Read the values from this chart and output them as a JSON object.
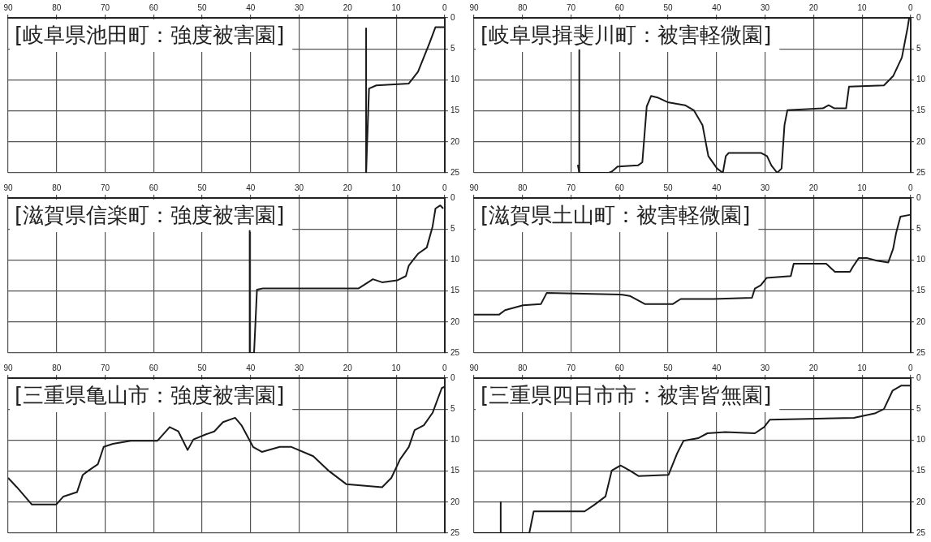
{
  "chart_data": [
    {
      "type": "line",
      "title": "[岐阜県池田町：強度被害園]",
      "series": [
        {
          "color": "#1a1a1a",
          "x": [
            16.2,
            16.2
          ],
          "values": [
            1.7,
            25
          ]
        },
        {
          "color": "#1a1a1a",
          "x": [
            16.2,
            15.6,
            14.1,
            7.4,
            5.5,
            3.1,
            1.9,
            0
          ],
          "values": [
            25,
            11.4,
            10.9,
            10.6,
            8.7,
            4.0,
            1.5,
            1.5
          ]
        }
      ],
      "xlim": [
        90,
        0
      ],
      "xticks": [
        90,
        80,
        70,
        60,
        50,
        40,
        30,
        20,
        10,
        0
      ],
      "ylim": [
        25,
        0
      ],
      "yticks": [
        0,
        5,
        10,
        15,
        20,
        25
      ],
      "grid": true,
      "marker": "none"
    },
    {
      "type": "line",
      "title": "[岐阜県揖斐川町：被害軽微園]",
      "series": [
        {
          "color": "#1a1a1a",
          "x": [
            0.3,
            0.6,
            1.8,
            3.6,
            5.5,
            12.7,
            13.3,
            15.7,
            16.9,
            18.1,
            25.4,
            26,
            26.6,
            27.5,
            28.7,
            29.6,
            30.8,
            37.5,
            38.1,
            38.7,
            39.9,
            41.7,
            42.9,
            44.7,
            46.5,
            50.1,
            52,
            53.5,
            54.4,
            55.3,
            56.2,
            60.4,
            61.6,
            62.2,
            68.3,
            68.6
          ],
          "values": [
            0,
            1.5,
            6.4,
            9.4,
            10.9,
            11.1,
            14.6,
            14.6,
            14.1,
            14.6,
            14.9,
            17.3,
            24.3,
            25,
            23.8,
            22.3,
            21.8,
            21.8,
            22.3,
            25,
            24.3,
            22.3,
            17.3,
            14.9,
            14.1,
            13.6,
            12.9,
            12.6,
            14.3,
            23.3,
            23.8,
            24,
            24.8,
            25,
            25,
            23.7
          ]
        },
        {
          "color": "#1a1a1a",
          "x": [
            68.3,
            68.3
          ],
          "values": [
            5.2,
            25
          ]
        }
      ],
      "xlim": [
        90,
        0
      ],
      "xticks": [
        90,
        80,
        70,
        60,
        50,
        40,
        30,
        20,
        10,
        0
      ],
      "ylim": [
        25,
        0
      ],
      "yticks": [
        0,
        5,
        10,
        15,
        20,
        25
      ],
      "grid": true,
      "marker": "none"
    },
    {
      "type": "line",
      "title": "[滋賀県信楽町：強度被害園]",
      "series": [
        {
          "color": "#1a1a1a",
          "x": [
            40.2,
            40.2
          ],
          "values": [
            5.3,
            25
          ]
        },
        {
          "color": "#1a1a1a",
          "x": [
            40.2,
            39.3,
            38.7,
            37.5,
            17.8,
            14.8,
            12.9,
            9.8,
            8,
            7.4,
            5.5,
            3.7,
            2.5,
            1.9,
            0.9,
            0.3
          ],
          "values": [
            25,
            25,
            14.8,
            14.6,
            14.6,
            13.1,
            13.6,
            13.3,
            12.6,
            10.9,
            9.0,
            8.0,
            4.6,
            1.7,
            1.2,
            1.7
          ]
        }
      ],
      "xlim": [
        90,
        0
      ],
      "xticks": [
        90,
        80,
        70,
        60,
        50,
        40,
        30,
        20,
        10,
        0
      ],
      "ylim": [
        25,
        0
      ],
      "yticks": [
        0,
        5,
        10,
        15,
        20,
        25
      ],
      "grid": true,
      "marker": "none"
    },
    {
      "type": "line",
      "title": "[滋賀県土山町：被害軽微園]",
      "series": [
        {
          "color": "#1a1a1a",
          "x": [
            0,
            2.1,
            3.0,
            3.6,
            4.6,
            7,
            8.9,
            10.7,
            11.9,
            12.5,
            15.6,
            17.4,
            24.1,
            24.7,
            29.7,
            30.9,
            32.1,
            32.7,
            40.7,
            47.4,
            49,
            54.8,
            57.9,
            59.4,
            75,
            76.2,
            79.9,
            83.6,
            84.8,
            90
          ],
          "values": [
            2.7,
            3.0,
            5.7,
            8.2,
            10.4,
            10.1,
            9.7,
            9.7,
            11.1,
            11.9,
            11.9,
            10.6,
            10.6,
            12.6,
            12.9,
            14.1,
            14.6,
            16.1,
            16.3,
            16.3,
            17.1,
            17.1,
            15.8,
            15.6,
            15.3,
            17.1,
            17.3,
            18.1,
            18.8,
            18.8
          ]
        }
      ],
      "xlim": [
        90,
        0
      ],
      "xticks": [
        90,
        80,
        70,
        60,
        50,
        40,
        30,
        20,
        10,
        0
      ],
      "ylim": [
        25,
        0
      ],
      "yticks": [
        0,
        5,
        10,
        15,
        20,
        25
      ],
      "grid": true,
      "marker": "none"
    },
    {
      "type": "line",
      "title": "[三重県亀山市：強度被害園]",
      "series": [
        {
          "color": "#1a1a1a",
          "x": [
            90,
            88.2,
            85.1,
            80.1,
            78.6,
            75.8,
            74.6,
            73.4,
            71.5,
            70.3,
            68.4,
            64.7,
            59.2,
            56.7,
            54.9,
            53,
            51.8,
            49.3,
            47.5,
            45.7,
            43.2,
            41.9,
            39.5,
            37.7,
            34,
            31.6,
            27.1,
            24,
            20.3,
            12.9,
            11,
            9.2,
            7.4,
            6.2,
            4.3,
            2.5,
            0.6,
            0
          ],
          "values": [
            16.1,
            17.6,
            20.4,
            20.4,
            19.1,
            18.4,
            15.6,
            14.9,
            13.9,
            11.1,
            10.6,
            10.1,
            10.1,
            7.9,
            8.6,
            11.6,
            9.9,
            9.1,
            8.6,
            7.1,
            6.4,
            7.6,
            11.1,
            11.9,
            11.1,
            11.1,
            12.6,
            14.9,
            17.1,
            17.6,
            16.1,
            13.1,
            11.1,
            8.4,
            7.6,
            5.6,
            1.6,
            1.4
          ]
        }
      ],
      "xlim": [
        90,
        0
      ],
      "xticks": [
        90,
        80,
        70,
        60,
        50,
        40,
        30,
        20,
        10,
        0
      ],
      "ylim": [
        25,
        0
      ],
      "yticks": [
        0,
        5,
        10,
        15,
        20,
        25
      ],
      "grid": true,
      "marker": "none"
    },
    {
      "type": "line",
      "title": "[三重県四日市市：被害皆無園]",
      "series": [
        {
          "color": "#1a1a1a",
          "x": [
            0,
            1.9,
            3.7,
            5.5,
            7.4,
            11.7,
            29,
            30.2,
            32.1,
            38.2,
            41.9,
            43.8,
            46.8,
            48.1,
            49.9,
            56.1,
            57.9,
            59.8,
            61.6,
            62.9,
            65.3,
            67.2,
            77.7,
            78.6,
            80.1,
            83.5,
            84.5,
            84.5,
            84.5,
            90
          ],
          "values": [
            1.2,
            1.2,
            2,
            5.0,
            5.7,
            6.4,
            6.7,
            7.9,
            8.9,
            8.7,
            8.9,
            9.7,
            10.1,
            12.1,
            15.6,
            15.8,
            14.9,
            14.1,
            14.9,
            19.1,
            20.5,
            21.5,
            21.5,
            25,
            25,
            25,
            25,
            20.0,
            25,
            25
          ]
        }
      ],
      "xlim": [
        90,
        0
      ],
      "xticks": [
        90,
        80,
        70,
        60,
        50,
        40,
        30,
        20,
        10,
        0
      ],
      "ylim": [
        25,
        0
      ],
      "yticks": [
        0,
        5,
        10,
        15,
        20,
        25
      ],
      "grid": true,
      "marker": "none"
    }
  ]
}
